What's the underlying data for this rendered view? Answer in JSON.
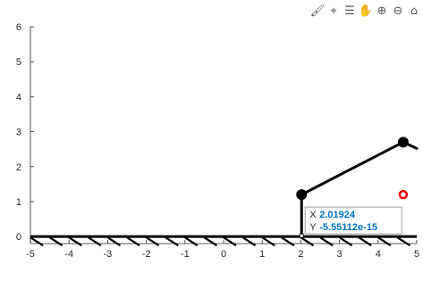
{
  "toolbar": {
    "buttons": [
      {
        "name": "brush-icon",
        "glyph": "🖌"
      },
      {
        "name": "data-tip-icon",
        "glyph": "⌖"
      },
      {
        "name": "legend-icon",
        "glyph": "☰"
      },
      {
        "name": "pan-hand-icon",
        "glyph": "✋"
      },
      {
        "name": "zoom-in-icon",
        "glyph": "⊕"
      },
      {
        "name": "zoom-out-icon",
        "glyph": "⊖"
      },
      {
        "name": "home-icon",
        "glyph": "⌂"
      }
    ]
  },
  "chart_data": {
    "type": "line",
    "title": "",
    "xlabel": "",
    "ylabel": "",
    "xlim": [
      -5,
      5
    ],
    "ylim": [
      -0.2,
      6
    ],
    "xticks": [
      -5,
      -4,
      -3,
      -2,
      -1,
      0,
      1,
      2,
      3,
      4,
      5
    ],
    "yticks": [
      0,
      1,
      2,
      3,
      4,
      5,
      6
    ],
    "grid": false,
    "ground": {
      "y": 0,
      "from": -5,
      "to": 5,
      "hatch_spacing": 0.5
    },
    "series": [
      {
        "points": [
          [
            2.01924,
            0
          ],
          [
            2.01924,
            1.2
          ],
          [
            4.65,
            2.7
          ],
          [
            5,
            2.52
          ]
        ]
      }
    ],
    "joints": [
      [
        2.01924,
        1.2
      ],
      [
        4.65,
        2.7
      ]
    ],
    "datatip": {
      "x_key": "X",
      "x_value": "2.01924",
      "y_key": "Y",
      "y_value": "-5.55112e-15",
      "anchor": [
        2.01924,
        0
      ]
    },
    "target": {
      "x": 4.65,
      "y": 1.2,
      "color": "#ff0000"
    },
    "colors": {
      "axis": "#262626",
      "line": "#000000",
      "tip_value": "#0072bd"
    }
  }
}
